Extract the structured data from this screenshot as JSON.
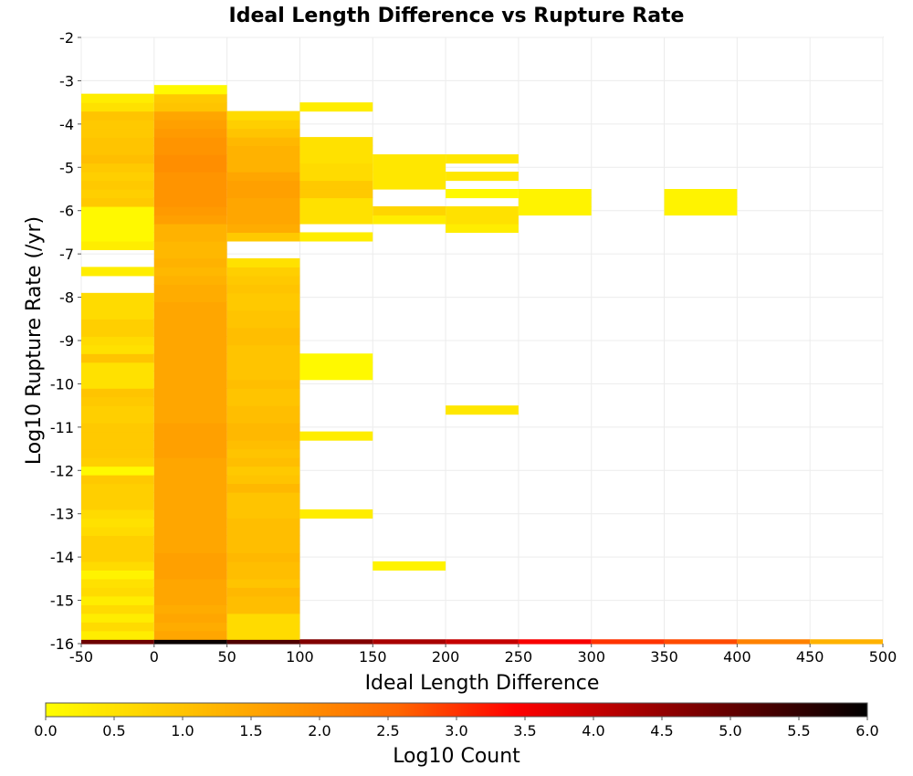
{
  "chart_data": {
    "type": "heatmap",
    "title": "Ideal Length Difference vs Rupture Rate",
    "xlabel": "Ideal Length Difference",
    "ylabel": "Log10 Rupture Rate (/yr)",
    "xlim": [
      -50,
      500
    ],
    "ylim": [
      -16,
      -2
    ],
    "x_ticks": [
      -50,
      0,
      50,
      100,
      150,
      200,
      250,
      300,
      350,
      400,
      450,
      500
    ],
    "y_ticks": [
      -2,
      -3,
      -4,
      -5,
      -6,
      -7,
      -8,
      -9,
      -10,
      -11,
      -12,
      -13,
      -14,
      -15,
      -16
    ],
    "grid": true,
    "bin_width": 50,
    "bin_height": 0.2,
    "colorbar": {
      "label": "Log10 Count",
      "range": [
        0,
        6
      ],
      "ticks": [
        "0.0",
        "0.5",
        "1.0",
        "1.5",
        "2.0",
        "2.5",
        "3.0",
        "3.5",
        "4.0",
        "4.5",
        "5.0",
        "5.5",
        "6.0"
      ],
      "stops": [
        "#ffff00",
        "#ffcc00",
        "#ff9900",
        "#ff6600",
        "#ff0000",
        "#aa0000",
        "#550000",
        "#000000"
      ]
    },
    "columns": [
      {
        "x": -25,
        "cells": [
          [
            -16,
            4.9
          ],
          [
            -15.8,
            0.3
          ],
          [
            -15.6,
            0.6
          ],
          [
            -15.4,
            0.3
          ],
          [
            -15.2,
            0.6
          ],
          [
            -15.0,
            0.3
          ],
          [
            -14.8,
            0.6
          ],
          [
            -14.6,
            0.5
          ],
          [
            -14.4,
            0.2
          ],
          [
            -14.2,
            0.6
          ],
          [
            -14.0,
            0.8
          ],
          [
            -13.8,
            0.8
          ],
          [
            -13.6,
            0.8
          ],
          [
            -13.4,
            0.6
          ],
          [
            -13.2,
            0.5
          ],
          [
            -13.0,
            0.6
          ],
          [
            -12.8,
            0.8
          ],
          [
            -12.6,
            0.8
          ],
          [
            -12.4,
            0.8
          ],
          [
            -12.2,
            0.9
          ],
          [
            -12.0,
            0.1
          ],
          [
            -11.8,
            0.8
          ],
          [
            -11.6,
            0.9
          ],
          [
            -11.4,
            0.9
          ],
          [
            -11.2,
            0.9
          ],
          [
            -11.0,
            0.9
          ],
          [
            -10.8,
            0.8
          ],
          [
            -10.6,
            0.8
          ],
          [
            -10.4,
            0.9
          ],
          [
            -10.2,
            1.0
          ],
          [
            -10.0,
            0.5
          ],
          [
            -9.8,
            0.5
          ],
          [
            -9.6,
            0.5
          ],
          [
            -9.4,
            1.0
          ],
          [
            -9.2,
            0.5
          ],
          [
            -9.0,
            0.6
          ],
          [
            -8.8,
            0.8
          ],
          [
            -8.6,
            0.8
          ],
          [
            -8.4,
            0.6
          ],
          [
            -8.2,
            0.6
          ],
          [
            -8.0,
            0.6
          ],
          [
            -7.4,
            0.3
          ],
          [
            -6.8,
            0.3
          ],
          [
            -6.6,
            0.1
          ],
          [
            -6.4,
            0.1
          ],
          [
            -6.2,
            0.1
          ],
          [
            -6.0,
            0.1
          ],
          [
            -5.8,
            0.9
          ],
          [
            -5.6,
            0.8
          ],
          [
            -5.4,
            0.9
          ],
          [
            -5.2,
            0.8
          ],
          [
            -5.0,
            0.9
          ],
          [
            -4.8,
            1.1
          ],
          [
            -4.6,
            1.0
          ],
          [
            -4.4,
            1.0
          ],
          [
            -4.2,
            0.9
          ],
          [
            -4.0,
            0.9
          ],
          [
            -3.8,
            1.0
          ],
          [
            -3.6,
            0.5
          ],
          [
            -3.4,
            0.3
          ]
        ]
      },
      {
        "x": 25,
        "cells": [
          [
            -16,
            5.9
          ],
          [
            -15.8,
            1.5
          ],
          [
            -15.6,
            1.4
          ],
          [
            -15.4,
            1.5
          ],
          [
            -15.2,
            1.4
          ],
          [
            -15.0,
            1.5
          ],
          [
            -14.8,
            1.5
          ],
          [
            -14.6,
            1.5
          ],
          [
            -14.4,
            1.6
          ],
          [
            -14.2,
            1.6
          ],
          [
            -14.0,
            1.6
          ],
          [
            -13.8,
            1.5
          ],
          [
            -13.6,
            1.5
          ],
          [
            -13.4,
            1.5
          ],
          [
            -13.2,
            1.5
          ],
          [
            -13.0,
            1.5
          ],
          [
            -12.8,
            1.5
          ],
          [
            -12.6,
            1.5
          ],
          [
            -12.4,
            1.5
          ],
          [
            -12.2,
            1.5
          ],
          [
            -12.0,
            1.5
          ],
          [
            -11.8,
            1.5
          ],
          [
            -11.6,
            1.6
          ],
          [
            -11.4,
            1.6
          ],
          [
            -11.2,
            1.6
          ],
          [
            -11.0,
            1.6
          ],
          [
            -10.8,
            1.5
          ],
          [
            -10.6,
            1.5
          ],
          [
            -10.4,
            1.5
          ],
          [
            -10.2,
            1.5
          ],
          [
            -10.0,
            1.5
          ],
          [
            -9.8,
            1.5
          ],
          [
            -9.6,
            1.5
          ],
          [
            -9.4,
            1.5
          ],
          [
            -9.2,
            1.5
          ],
          [
            -9.0,
            1.5
          ],
          [
            -8.8,
            1.5
          ],
          [
            -8.6,
            1.5
          ],
          [
            -8.4,
            1.5
          ],
          [
            -8.2,
            1.5
          ],
          [
            -8.0,
            1.4
          ],
          [
            -7.8,
            1.4
          ],
          [
            -7.6,
            1.3
          ],
          [
            -7.4,
            1.2
          ],
          [
            -7.2,
            1.3
          ],
          [
            -7.0,
            1.2
          ],
          [
            -6.8,
            1.2
          ],
          [
            -6.6,
            1.3
          ],
          [
            -6.4,
            1.3
          ],
          [
            -6.2,
            1.6
          ],
          [
            -6.0,
            1.7
          ],
          [
            -5.8,
            1.8
          ],
          [
            -5.6,
            1.8
          ],
          [
            -5.4,
            1.8
          ],
          [
            -5.2,
            1.8
          ],
          [
            -5.0,
            1.9
          ],
          [
            -4.8,
            1.9
          ],
          [
            -4.6,
            1.8
          ],
          [
            -4.4,
            1.8
          ],
          [
            -4.2,
            1.7
          ],
          [
            -4.0,
            1.6
          ],
          [
            -3.8,
            1.5
          ],
          [
            -3.6,
            1.0
          ],
          [
            -3.4,
            0.9
          ],
          [
            -3.2,
            0.1
          ]
        ]
      },
      {
        "x": 75,
        "cells": [
          [
            -16,
            5.2
          ],
          [
            -15.8,
            0.6
          ],
          [
            -15.6,
            0.6
          ],
          [
            -15.4,
            0.6
          ],
          [
            -15.2,
            1.1
          ],
          [
            -15.0,
            1.1
          ],
          [
            -14.8,
            1.2
          ],
          [
            -14.6,
            1.0
          ],
          [
            -14.4,
            1.1
          ],
          [
            -14.2,
            1.1
          ],
          [
            -14.0,
            1.2
          ],
          [
            -13.8,
            1.1
          ],
          [
            -13.6,
            1.1
          ],
          [
            -13.4,
            1.1
          ],
          [
            -13.2,
            1.1
          ],
          [
            -13.0,
            1.0
          ],
          [
            -12.8,
            1.0
          ],
          [
            -12.6,
            1.0
          ],
          [
            -12.4,
            1.2
          ],
          [
            -12.2,
            1.0
          ],
          [
            -12.0,
            0.9
          ],
          [
            -11.8,
            1.1
          ],
          [
            -11.6,
            1.0
          ],
          [
            -11.4,
            1.1
          ],
          [
            -11.2,
            1.2
          ],
          [
            -11.0,
            1.2
          ],
          [
            -10.8,
            1.1
          ],
          [
            -10.6,
            1.1
          ],
          [
            -10.4,
            1.0
          ],
          [
            -10.2,
            1.0
          ],
          [
            -10.0,
            1.1
          ],
          [
            -9.8,
            1.0
          ],
          [
            -9.6,
            1.0
          ],
          [
            -9.4,
            1.0
          ],
          [
            -9.2,
            1.0
          ],
          [
            -9.0,
            1.1
          ],
          [
            -8.8,
            1.1
          ],
          [
            -8.6,
            1.0
          ],
          [
            -8.4,
            1.0
          ],
          [
            -8.2,
            0.9
          ],
          [
            -8.0,
            0.9
          ],
          [
            -7.8,
            1.0
          ],
          [
            -7.6,
            0.9
          ],
          [
            -7.4,
            0.8
          ],
          [
            -7.2,
            0.5
          ],
          [
            -6.6,
            0.9
          ],
          [
            -6.4,
            1.4
          ],
          [
            -6.2,
            1.5
          ],
          [
            -6.0,
            1.5
          ],
          [
            -5.8,
            1.5
          ],
          [
            -5.6,
            1.6
          ],
          [
            -5.4,
            1.6
          ],
          [
            -5.2,
            1.5
          ],
          [
            -5.0,
            1.3
          ],
          [
            -4.8,
            1.3
          ],
          [
            -4.6,
            1.3
          ],
          [
            -4.4,
            1.2
          ],
          [
            -4.2,
            1.0
          ],
          [
            -4.0,
            0.8
          ],
          [
            -3.8,
            0.6
          ]
        ]
      },
      {
        "x": 125,
        "cells": [
          [
            -16,
            4.7
          ],
          [
            -13.0,
            0.3
          ],
          [
            -11.2,
            0.3
          ],
          [
            -9.8,
            0.1
          ],
          [
            -9.6,
            0.1
          ],
          [
            -9.4,
            0.1
          ],
          [
            -6.6,
            0.3
          ],
          [
            -6.2,
            0.5
          ],
          [
            -6.0,
            0.5
          ],
          [
            -5.8,
            0.5
          ],
          [
            -5.6,
            0.9
          ],
          [
            -5.4,
            0.9
          ],
          [
            -5.2,
            0.6
          ],
          [
            -5.0,
            0.6
          ],
          [
            -4.8,
            0.5
          ],
          [
            -4.6,
            0.5
          ],
          [
            -4.4,
            0.5
          ],
          [
            -3.6,
            0.3
          ]
        ]
      },
      {
        "x": 175,
        "cells": [
          [
            -16,
            4.3
          ],
          [
            -14.2,
            0.2
          ],
          [
            -6.2,
            0.3
          ],
          [
            -6.0,
            0.7
          ],
          [
            -5.4,
            0.4
          ],
          [
            -5.2,
            0.4
          ],
          [
            -5.0,
            0.4
          ],
          [
            -4.8,
            0.4
          ]
        ]
      },
      {
        "x": 225,
        "cells": [
          [
            -16,
            4.0
          ],
          [
            -10.6,
            0.4
          ],
          [
            -6.4,
            0.3
          ],
          [
            -6.2,
            0.5
          ],
          [
            -6.0,
            0.5
          ],
          [
            -5.6,
            0.1
          ],
          [
            -5.2,
            0.4
          ],
          [
            -4.8,
            0.4
          ]
        ]
      },
      {
        "x": 275,
        "cells": [
          [
            -16,
            3.5
          ],
          [
            -6.0,
            0.2
          ],
          [
            -5.8,
            0.2
          ],
          [
            -5.6,
            0.2
          ]
        ]
      },
      {
        "x": 325,
        "cells": [
          [
            -16,
            3.0
          ]
        ]
      },
      {
        "x": 375,
        "cells": [
          [
            -16,
            2.8
          ],
          [
            -6.0,
            0.2
          ],
          [
            -5.8,
            0.2
          ],
          [
            -5.6,
            0.2
          ]
        ]
      },
      {
        "x": 425,
        "cells": [
          [
            -16,
            2.1
          ]
        ]
      },
      {
        "x": 475,
        "cells": [
          [
            -16,
            1.3
          ]
        ]
      }
    ]
  }
}
